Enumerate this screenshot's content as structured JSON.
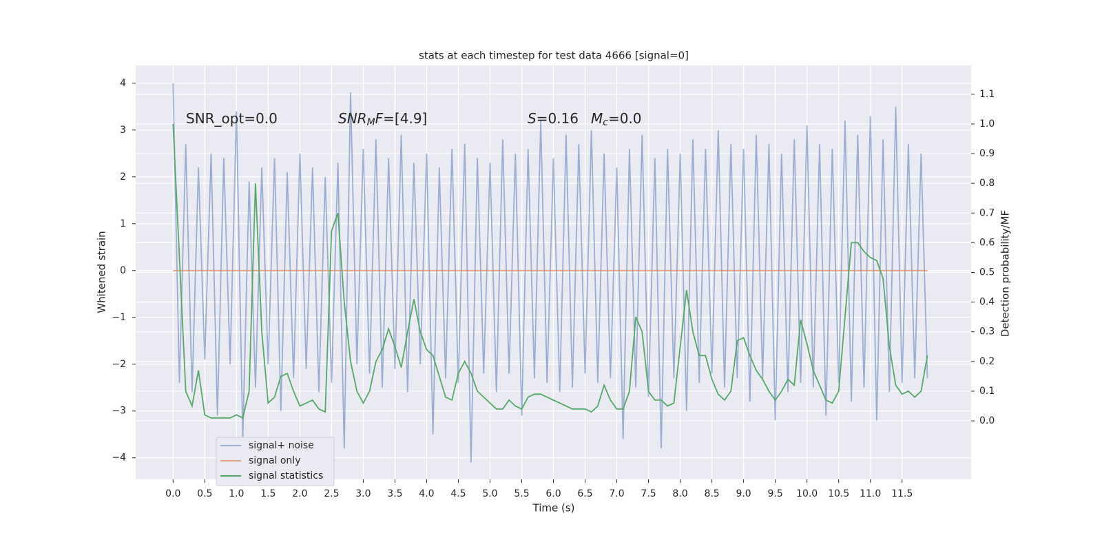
{
  "chart_data": {
    "type": "line",
    "title": "stats at each timestep for test data 4666 [signal=0]",
    "xlabel": "Time (s)",
    "ylabel": "Whitened strain",
    "y2label": "Detection probability/MF",
    "annotations": [
      {
        "parts": [
          {
            "text": "SNR_opt=0.0"
          }
        ]
      },
      {
        "parts": [
          {
            "text": "SNR",
            "italic": true
          },
          {
            "text": "M",
            "italic": true,
            "sub": true
          },
          {
            "text": "F",
            "italic": true
          },
          {
            "text": "=[4.9]"
          }
        ]
      },
      {
        "parts": [
          {
            "text": "S",
            "italic": true
          },
          {
            "text": "=0.16"
          }
        ]
      },
      {
        "parts": [
          {
            "text": "M",
            "italic": true
          },
          {
            "text": "c",
            "italic": true,
            "sub": true
          },
          {
            "text": "=0.0"
          }
        ]
      }
    ],
    "x": [
      0,
      0.1,
      0.2,
      0.3,
      0.4,
      0.5,
      0.6,
      0.7,
      0.8,
      0.9,
      1.0,
      1.1,
      1.2,
      1.3,
      1.4,
      1.5,
      1.6,
      1.7,
      1.8,
      1.9,
      2.0,
      2.1,
      2.2,
      2.3,
      2.4,
      2.5,
      2.6,
      2.7,
      2.8,
      2.9,
      3.0,
      3.1,
      3.2,
      3.3,
      3.4,
      3.5,
      3.6,
      3.7,
      3.8,
      3.9,
      4.0,
      4.1,
      4.2,
      4.3,
      4.4,
      4.5,
      4.6,
      4.7,
      4.8,
      4.9,
      5.0,
      5.1,
      5.2,
      5.3,
      5.4,
      5.5,
      5.6,
      5.7,
      5.8,
      5.9,
      6.0,
      6.1,
      6.2,
      6.3,
      6.4,
      6.5,
      6.6,
      6.7,
      6.8,
      6.9,
      7.0,
      7.1,
      7.2,
      7.3,
      7.4,
      7.5,
      7.6,
      7.7,
      7.8,
      7.9,
      8.0,
      8.1,
      8.2,
      8.3,
      8.4,
      8.5,
      8.6,
      8.7,
      8.8,
      8.9,
      9.0,
      9.1,
      9.2,
      9.3,
      9.4,
      9.5,
      9.6,
      9.7,
      9.8,
      9.9,
      10.0,
      10.1,
      10.2,
      10.3,
      10.4,
      10.5,
      10.6,
      10.7,
      10.8,
      10.9,
      11.0,
      11.1,
      11.2,
      11.3,
      11.4,
      11.5,
      11.6,
      11.7,
      11.8,
      11.9
    ],
    "series": [
      {
        "name": "signal+ noise",
        "color": "#4c72b0",
        "opacity": 0.5,
        "values": [
          4.0,
          -2.4,
          2.7,
          -2.6,
          2.2,
          -1.9,
          2.5,
          -3.1,
          2.4,
          -2.0,
          3.4,
          -3.6,
          1.9,
          -2.5,
          2.2,
          -2.0,
          2.4,
          -3.0,
          2.1,
          -2.3,
          2.5,
          -2.1,
          2.2,
          -2.6,
          2.0,
          -2.4,
          2.3,
          -3.8,
          3.8,
          -2.0,
          2.6,
          -2.2,
          2.8,
          -2.5,
          2.4,
          -2.1,
          2.9,
          -2.6,
          2.3,
          -2.0,
          2.5,
          -3.5,
          2.2,
          -2.3,
          2.6,
          -2.4,
          2.7,
          -4.1,
          2.4,
          -2.2,
          2.3,
          -2.6,
          2.8,
          -2.2,
          2.5,
          -3.1,
          2.6,
          -2.3,
          3.2,
          -2.4,
          2.4,
          -2.6,
          2.9,
          -2.5,
          2.7,
          -2.2,
          3.0,
          -2.4,
          2.5,
          -2.3,
          2.2,
          -3.6,
          2.6,
          -2.5,
          2.9,
          -2.7,
          2.4,
          -3.8,
          2.6,
          -2.3,
          2.5,
          -3.0,
          2.8,
          -2.4,
          2.6,
          -2.2,
          3.0,
          -2.5,
          2.7,
          -2.3,
          2.6,
          -2.8,
          2.9,
          -2.3,
          2.7,
          -3.2,
          2.5,
          -2.6,
          2.8,
          -2.4,
          3.1,
          -2.5,
          2.7,
          -3.1,
          2.6,
          -2.4,
          3.2,
          -2.8,
          2.9,
          -2.5,
          3.3,
          -3.2,
          2.8,
          -2.6,
          3.5,
          -2.4,
          2.7,
          -2.3,
          2.5,
          -2.3
        ]
      },
      {
        "name": "signal only",
        "color": "#dd8452",
        "opacity": 0.7,
        "values": [
          0,
          0,
          0,
          0,
          0,
          0,
          0,
          0,
          0,
          0,
          0,
          0,
          0,
          0,
          0,
          0,
          0,
          0,
          0,
          0,
          0,
          0,
          0,
          0,
          0,
          0,
          0,
          0,
          0,
          0,
          0,
          0,
          0,
          0,
          0,
          0,
          0,
          0,
          0,
          0,
          0,
          0,
          0,
          0,
          0,
          0,
          0,
          0,
          0,
          0,
          0,
          0,
          0,
          0,
          0,
          0,
          0,
          0,
          0,
          0,
          0,
          0,
          0,
          0,
          0,
          0,
          0,
          0,
          0,
          0,
          0,
          0,
          0,
          0,
          0,
          0,
          0,
          0,
          0,
          0,
          0,
          0,
          0,
          0,
          0,
          0,
          0,
          0,
          0,
          0,
          0,
          0,
          0,
          0,
          0,
          0,
          0,
          0,
          0,
          0,
          0,
          0,
          0,
          0,
          0,
          0,
          0,
          0,
          0,
          0,
          0,
          0,
          0,
          0,
          0,
          0,
          0,
          0,
          0,
          0
        ]
      },
      {
        "name": "signal statistics",
        "color": "#55a868",
        "opacity": 1,
        "axis": "y2",
        "values": [
          1.0,
          0.55,
          0.1,
          0.05,
          0.17,
          0.02,
          0.01,
          0.01,
          0.01,
          0.01,
          0.02,
          0.01,
          0.1,
          0.8,
          0.3,
          0.06,
          0.08,
          0.15,
          0.16,
          0.1,
          0.05,
          0.06,
          0.07,
          0.04,
          0.03,
          0.64,
          0.7,
          0.4,
          0.2,
          0.1,
          0.06,
          0.1,
          0.2,
          0.24,
          0.31,
          0.25,
          0.18,
          0.3,
          0.41,
          0.3,
          0.24,
          0.22,
          0.15,
          0.08,
          0.07,
          0.16,
          0.2,
          0.16,
          0.1,
          0.08,
          0.06,
          0.04,
          0.04,
          0.07,
          0.05,
          0.04,
          0.08,
          0.09,
          0.09,
          0.08,
          0.07,
          0.06,
          0.05,
          0.04,
          0.04,
          0.04,
          0.03,
          0.05,
          0.12,
          0.07,
          0.04,
          0.04,
          0.1,
          0.35,
          0.3,
          0.1,
          0.07,
          0.07,
          0.05,
          0.06,
          0.25,
          0.44,
          0.3,
          0.22,
          0.22,
          0.14,
          0.09,
          0.07,
          0.1,
          0.27,
          0.28,
          0.22,
          0.17,
          0.14,
          0.1,
          0.07,
          0.1,
          0.14,
          0.12,
          0.34,
          0.26,
          0.17,
          0.12,
          0.07,
          0.06,
          0.1,
          0.35,
          0.6,
          0.6,
          0.57,
          0.55,
          0.54,
          0.48,
          0.25,
          0.12,
          0.09,
          0.1,
          0.08,
          0.1,
          0.22
        ]
      }
    ],
    "xlim": [
      -0.59,
      12.59
    ],
    "xticks": [
      {
        "value": 0,
        "label": "0.0"
      },
      {
        "value": 0.5,
        "label": "0.5"
      },
      {
        "value": 1,
        "label": "1.0"
      },
      {
        "value": 1.5,
        "label": "1.5"
      },
      {
        "value": 2,
        "label": "2.0"
      },
      {
        "value": 2.5,
        "label": "2.5"
      },
      {
        "value": 3,
        "label": "3.0"
      },
      {
        "value": 3.5,
        "label": "3.5"
      },
      {
        "value": 4,
        "label": "4.0"
      },
      {
        "value": 4.5,
        "label": "4.5"
      },
      {
        "value": 5,
        "label": "5.0"
      },
      {
        "value": 5.5,
        "label": "5.5"
      },
      {
        "value": 6,
        "label": "6.0"
      },
      {
        "value": 6.5,
        "label": "6.5"
      },
      {
        "value": 7,
        "label": "7.0"
      },
      {
        "value": 7.5,
        "label": "7.5"
      },
      {
        "value": 8,
        "label": "8.0"
      },
      {
        "value": 8.5,
        "label": "8.5"
      },
      {
        "value": 9,
        "label": "9.0"
      },
      {
        "value": 9.5,
        "label": "9.5"
      },
      {
        "value": 10,
        "label": "10.0"
      },
      {
        "value": 10.5,
        "label": "10.5"
      },
      {
        "value": 11,
        "label": "11.0"
      },
      {
        "value": 11.5,
        "label": "11.5"
      }
    ],
    "ylim": [
      -4.46,
      4.38
    ],
    "yticks": [
      {
        "value": -4,
        "label": "−4"
      },
      {
        "value": -3,
        "label": "−3"
      },
      {
        "value": -2,
        "label": "−2"
      },
      {
        "value": -1,
        "label": "−1"
      },
      0,
      1,
      2,
      3,
      4
    ],
    "y2lim": [
      -0.197,
      1.197
    ],
    "y2ticks": [
      {
        "value": 0,
        "label": "0.0"
      },
      {
        "value": 0.1,
        "label": "0.1"
      },
      {
        "value": 0.2,
        "label": "0.2"
      },
      {
        "value": 0.3,
        "label": "0.3"
      },
      {
        "value": 0.4,
        "label": "0.4"
      },
      {
        "value": 0.5,
        "label": "0.5"
      },
      {
        "value": 0.6,
        "label": "0.6"
      },
      {
        "value": 0.7,
        "label": "0.7"
      },
      {
        "value": 0.8,
        "label": "0.8"
      },
      {
        "value": 0.9,
        "label": "0.9"
      },
      {
        "value": 1,
        "label": "1.0"
      },
      {
        "value": 1.1,
        "label": "1.1"
      }
    ],
    "grid": true,
    "legend": "lower left"
  }
}
